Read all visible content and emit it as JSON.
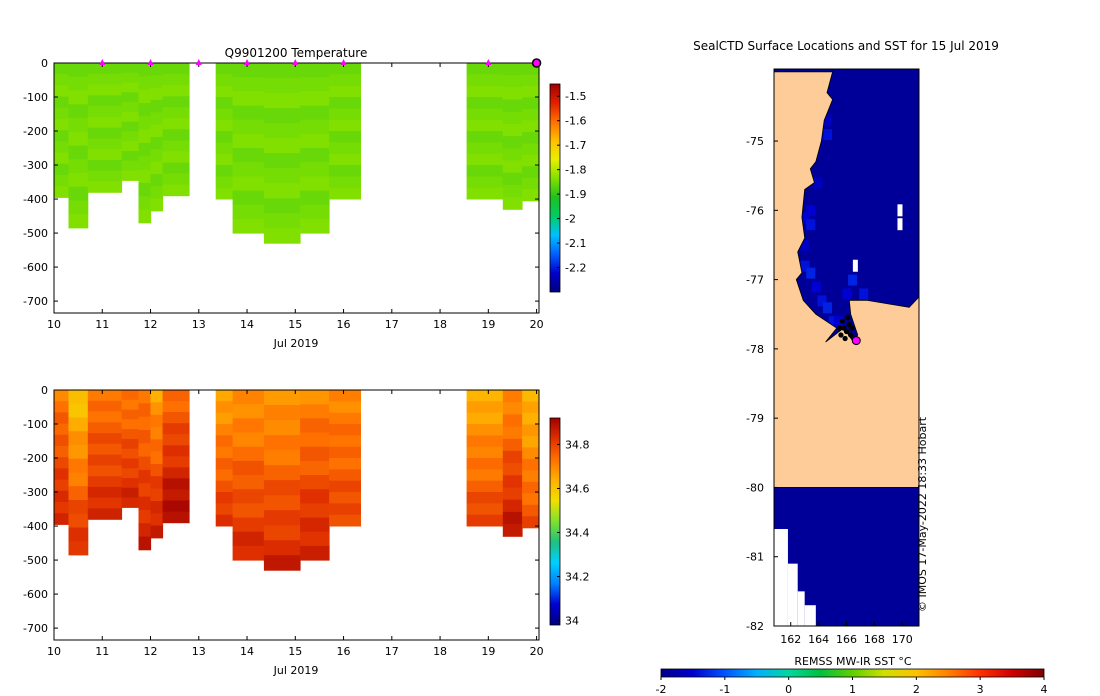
{
  "colors": {
    "temp_cmap": [
      "#000080",
      "#0000cc",
      "#0060ff",
      "#00c0ff",
      "#00cc66",
      "#20c020",
      "#80e000",
      "#e8f000",
      "#ffc000",
      "#ff7000",
      "#e02000",
      "#a00000"
    ],
    "sal_cmap": [
      "#000080",
      "#0000d0",
      "#0080ff",
      "#00d0ff",
      "#20c080",
      "#80e030",
      "#f0e000",
      "#ffb000",
      "#ff7000",
      "#e03000",
      "#a00000"
    ],
    "sst_cmap": [
      "#00008b",
      "#0000d0",
      "#0055ff",
      "#00b0ff",
      "#00d8a0",
      "#00c040",
      "#60d000",
      "#d0e000",
      "#ffc000",
      "#ff8000",
      "#ff3000",
      "#d00000",
      "#800000"
    ],
    "land": "#fdcc99",
    "ocean_deep": "#000080",
    "marker": "#ff00ff"
  },
  "timestamp": "© IMOS 17-May-2022 18:33 Hobart",
  "chart_data": [
    {
      "id": "temperature",
      "type": "heatmap",
      "title": "Q9901200  Temperature",
      "xlabel": "Jul 2019",
      "xlim": [
        10,
        20.05
      ],
      "x_ticks": [
        10,
        11,
        12,
        13,
        14,
        15,
        16,
        17,
        18,
        19,
        20
      ],
      "ylim": [
        -735,
        0
      ],
      "y_ticks": [
        0,
        -100,
        -200,
        -300,
        -400,
        -500,
        -600,
        -700
      ],
      "colorbar": {
        "min": -2.3,
        "max": -1.45,
        "ticks": [
          "-1.5",
          "-1.6",
          "-1.7",
          "-1.8",
          "-1.9",
          "-2",
          "-2.1",
          "-2.2"
        ],
        "tick_values": [
          -1.5,
          -1.6,
          -1.7,
          -1.8,
          -1.9,
          -2,
          -2.1,
          -2.2
        ]
      },
      "profile_days": [
        11,
        12,
        13,
        14,
        15,
        16,
        19,
        20
      ],
      "profiles": [
        {
          "x0": 10,
          "x1": 10.3,
          "depth": 395,
          "value": -1.84
        },
        {
          "x0": 10.3,
          "x1": 10.7,
          "depth": 485,
          "value": -1.85
        },
        {
          "x0": 10.7,
          "x1": 11.4,
          "depth": 380,
          "value": -1.84
        },
        {
          "x0": 11.4,
          "x1": 11.75,
          "depth": 345,
          "value": -1.85
        },
        {
          "x0": 11.75,
          "x1": 12.0,
          "depth": 470,
          "value": -1.84
        },
        {
          "x0": 12.0,
          "x1": 12.25,
          "depth": 435,
          "value": -1.85
        },
        {
          "x0": 12.25,
          "x1": 12.8,
          "depth": 390,
          "value": -1.84
        },
        {
          "x0": 13.35,
          "x1": 13.7,
          "depth": 400,
          "value": -1.85
        },
        {
          "x0": 13.7,
          "x1": 14.35,
          "depth": 500,
          "value": -1.84
        },
        {
          "x0": 14.35,
          "x1": 15.1,
          "depth": 530,
          "value": -1.85
        },
        {
          "x0": 15.1,
          "x1": 15.7,
          "depth": 500,
          "value": -1.84
        },
        {
          "x0": 15.7,
          "x1": 16.35,
          "depth": 400,
          "value": -1.85
        },
        {
          "x0": 18.55,
          "x1": 19.3,
          "depth": 400,
          "value": -1.84
        },
        {
          "x0": 19.3,
          "x1": 19.7,
          "depth": 430,
          "value": -1.85
        },
        {
          "x0": 19.7,
          "x1": 20.05,
          "depth": 405,
          "value": -1.84
        }
      ]
    },
    {
      "id": "salinity",
      "type": "heatmap",
      "title": "",
      "xlabel": "Jul 2019",
      "xlim": [
        10,
        20.05
      ],
      "x_ticks": [
        10,
        11,
        12,
        13,
        14,
        15,
        16,
        17,
        18,
        19,
        20
      ],
      "ylim": [
        -735,
        0
      ],
      "y_ticks": [
        0,
        -100,
        -200,
        -300,
        -400,
        -500,
        -600,
        -700
      ],
      "colorbar": {
        "min": 33.98,
        "max": 34.92,
        "ticks": [
          "34.8",
          "34.6",
          "34.4",
          "34.2",
          "34"
        ],
        "tick_values": [
          34.8,
          34.6,
          34.4,
          34.2,
          34.0
        ]
      },
      "profiles": [
        {
          "x0": 10,
          "x1": 10.3,
          "depth": 395,
          "top": 34.72,
          "bottom": 34.85
        },
        {
          "x0": 10.3,
          "x1": 10.7,
          "depth": 485,
          "top": 34.6,
          "bottom": 34.84
        },
        {
          "x0": 10.7,
          "x1": 11.4,
          "depth": 380,
          "top": 34.73,
          "bottom": 34.84
        },
        {
          "x0": 11.4,
          "x1": 11.75,
          "depth": 345,
          "top": 34.72,
          "bottom": 34.85
        },
        {
          "x0": 11.75,
          "x1": 12.0,
          "depth": 470,
          "top": 34.72,
          "bottom": 34.86
        },
        {
          "x0": 12.0,
          "x1": 12.25,
          "depth": 435,
          "top": 34.66,
          "bottom": 34.87
        },
        {
          "x0": 12.25,
          "x1": 12.8,
          "depth": 390,
          "top": 34.74,
          "bottom": 34.91
        },
        {
          "x0": 13.35,
          "x1": 13.7,
          "depth": 400,
          "top": 34.66,
          "bottom": 34.82
        },
        {
          "x0": 13.7,
          "x1": 14.35,
          "depth": 500,
          "top": 34.68,
          "bottom": 34.84
        },
        {
          "x0": 14.35,
          "x1": 15.1,
          "depth": 530,
          "top": 34.67,
          "bottom": 34.85
        },
        {
          "x0": 15.1,
          "x1": 15.7,
          "depth": 500,
          "top": 34.7,
          "bottom": 34.86
        },
        {
          "x0": 15.7,
          "x1": 16.35,
          "depth": 400,
          "top": 34.7,
          "bottom": 34.8
        },
        {
          "x0": 18.55,
          "x1": 19.3,
          "depth": 400,
          "top": 34.64,
          "bottom": 34.8
        },
        {
          "x0": 19.3,
          "x1": 19.7,
          "depth": 430,
          "top": 34.69,
          "bottom": 34.88
        },
        {
          "x0": 19.7,
          "x1": 20.05,
          "depth": 405,
          "top": 34.62,
          "bottom": 34.78
        }
      ]
    },
    {
      "id": "sst-map",
      "type": "heatmap",
      "title": "SealCTD Surface Locations and SST for 15 Jul 2019",
      "xlabel": "",
      "xlim": [
        160.8,
        171.2
      ],
      "x_ticks": [
        162,
        164,
        166,
        168,
        170
      ],
      "ylim": [
        -82,
        -73.96
      ],
      "y_ticks": [
        -75,
        -76,
        -77,
        -78,
        -79,
        -80,
        -81,
        -82
      ],
      "colorbar": {
        "label": "REMSS MW-IR SST °C",
        "min": -2,
        "max": 4,
        "ticks": [
          "-2",
          "-1",
          "0",
          "1",
          "2",
          "3",
          "4"
        ],
        "tick_values": [
          -2,
          -1,
          0,
          1,
          2,
          3,
          4
        ]
      },
      "coast": [
        [
          165.0,
          -74.0
        ],
        [
          164.6,
          -74.3
        ],
        [
          165.0,
          -74.4
        ],
        [
          164.4,
          -74.7
        ],
        [
          164.2,
          -75.0
        ],
        [
          163.8,
          -75.3
        ],
        [
          163.4,
          -75.4
        ],
        [
          163.7,
          -75.6
        ],
        [
          163.0,
          -75.7
        ],
        [
          162.8,
          -76.1
        ],
        [
          163.0,
          -76.4
        ],
        [
          162.5,
          -76.6
        ],
        [
          162.8,
          -76.9
        ],
        [
          162.4,
          -77.0
        ],
        [
          162.9,
          -77.3
        ],
        [
          163.8,
          -77.5
        ],
        [
          165.3,
          -77.7
        ],
        [
          164.5,
          -77.9
        ],
        [
          165.8,
          -77.7
        ],
        [
          166.5,
          -77.9
        ],
        [
          166.8,
          -77.8
        ],
        [
          166.3,
          -77.5
        ],
        [
          166.2,
          -77.3
        ],
        [
          167.5,
          -77.3
        ],
        [
          169.0,
          -77.35
        ],
        [
          170.5,
          -77.4
        ],
        [
          171.2,
          -77.25
        ],
        [
          171.2,
          -80.0
        ],
        [
          160.8,
          -80.0
        ],
        [
          160.8,
          -74.0
        ]
      ],
      "sst_background": -1.9,
      "near_coast_cells": [
        {
          "lon": 164.6,
          "lat": -74.7,
          "value": -1.6
        },
        {
          "lon": 164.6,
          "lat": -74.9,
          "value": -1.4
        },
        {
          "lon": 163.9,
          "lat": -75.6,
          "value": -1.6
        },
        {
          "lon": 163.4,
          "lat": -76.0,
          "value": -1.5
        },
        {
          "lon": 163.0,
          "lat": -76.1,
          "value": -1.5
        },
        {
          "lon": 163.4,
          "lat": -76.2,
          "value": -1.4
        },
        {
          "lon": 163.0,
          "lat": -76.5,
          "value": -1.6
        },
        {
          "lon": 163.0,
          "lat": -76.8,
          "value": -1.4
        },
        {
          "lon": 163.4,
          "lat": -76.9,
          "value": -1.3
        },
        {
          "lon": 163.8,
          "lat": -77.1,
          "value": -1.5
        },
        {
          "lon": 164.2,
          "lat": -77.3,
          "value": -1.4
        },
        {
          "lon": 164.6,
          "lat": -77.4,
          "value": -1.3
        },
        {
          "lon": 165.0,
          "lat": -77.6,
          "value": -1.4
        },
        {
          "lon": 165.4,
          "lat": -77.6,
          "value": -1.5
        },
        {
          "lon": 166.0,
          "lat": -77.2,
          "value": -1.5
        },
        {
          "lon": 166.4,
          "lat": -77.0,
          "value": -1.3
        },
        {
          "lon": 167.2,
          "lat": -77.2,
          "value": -1.4
        },
        {
          "lon": 164.0,
          "lat": -74.9,
          "value": -1.5
        }
      ],
      "gaps": [
        {
          "lon": 169.8,
          "lat": -76.0
        },
        {
          "lon": 169.8,
          "lat": -76.2
        },
        {
          "lon": 166.6,
          "lat": -76.8
        }
      ],
      "southern_block": {
        "lat_top": -80.0,
        "value": -1.9
      },
      "southern_gaps": [
        {
          "lon0": 160.8,
          "lon1": 161.8,
          "lat0": -80.6,
          "lat1": -82.0
        },
        {
          "lon0": 161.8,
          "lon1": 162.5,
          "lat0": -81.1,
          "lat1": -82.0
        },
        {
          "lon0": 162.5,
          "lon1": 163.0,
          "lat0": -81.5,
          "lat1": -82.0
        },
        {
          "lon0": 163.0,
          "lon1": 163.8,
          "lat0": -81.7,
          "lat1": -82.0
        }
      ],
      "seal_points": [
        {
          "lon": 165.8,
          "lat": -77.7
        },
        {
          "lon": 166.0,
          "lat": -77.75
        },
        {
          "lon": 166.2,
          "lat": -77.65
        },
        {
          "lon": 165.6,
          "lat": -77.8
        },
        {
          "lon": 166.3,
          "lat": -77.8
        },
        {
          "lon": 165.9,
          "lat": -77.85
        },
        {
          "lon": 166.1,
          "lat": -77.55
        },
        {
          "lon": 165.7,
          "lat": -77.6
        },
        {
          "lon": 166.4,
          "lat": -77.7
        },
        {
          "lon": 165.5,
          "lat": -77.7
        }
      ],
      "latest_point": {
        "lon": 166.7,
        "lat": -77.88
      }
    }
  ]
}
